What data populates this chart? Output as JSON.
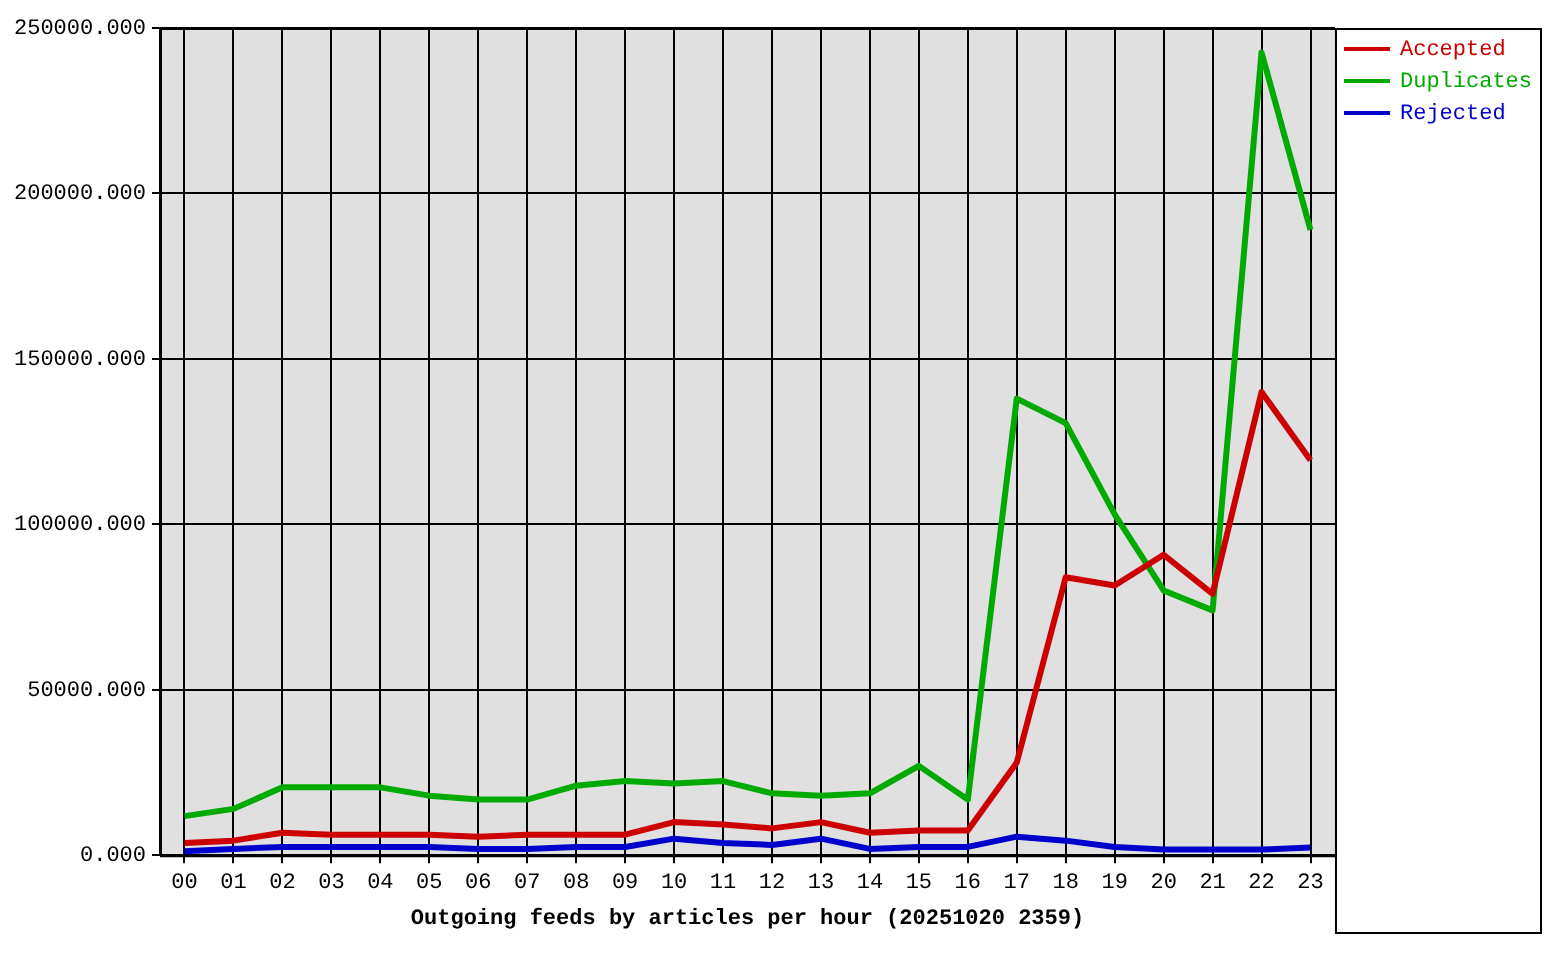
{
  "chart_data": {
    "type": "line",
    "xlabel": "Outgoing feeds by articles per hour (20251020 2359)",
    "categories": [
      "00",
      "01",
      "02",
      "03",
      "04",
      "05",
      "06",
      "07",
      "08",
      "09",
      "10",
      "11",
      "12",
      "13",
      "14",
      "15",
      "16",
      "17",
      "18",
      "19",
      "20",
      "21",
      "22",
      "23"
    ],
    "series": [
      {
        "name": "Accepted",
        "color": "#cc0000",
        "values": [
          3700,
          4400,
          6800,
          6200,
          6200,
          6200,
          5600,
          6200,
          6200,
          6200,
          10000,
          9300,
          8100,
          10000,
          6800,
          7500,
          7500,
          28000,
          84000,
          81500,
          90800,
          79000,
          140000,
          119400
        ]
      },
      {
        "name": "Duplicates",
        "color": "#00aa00",
        "values": [
          11800,
          14000,
          20500,
          20500,
          20500,
          18000,
          16800,
          16800,
          21000,
          22400,
          21700,
          22400,
          18700,
          18000,
          18700,
          27000,
          16800,
          138000,
          130600,
          103000,
          80000,
          74000,
          242600,
          189000
        ]
      },
      {
        "name": "Rejected",
        "color": "#0000cc",
        "values": [
          1200,
          1900,
          2500,
          2500,
          2500,
          2500,
          1900,
          1900,
          2500,
          2500,
          5000,
          3700,
          3100,
          5000,
          1900,
          2500,
          2500,
          5600,
          4400,
          2500,
          1700,
          1700,
          1700,
          2300
        ]
      }
    ],
    "ylim": [
      0,
      250000
    ],
    "yticks": [
      {
        "value": 0,
        "label": "0.000"
      },
      {
        "value": 50000,
        "label": "50000.000"
      },
      {
        "value": 100000,
        "label": "100000.000"
      },
      {
        "value": 150000,
        "label": "150000.000"
      },
      {
        "value": 200000,
        "label": "200000.000"
      },
      {
        "value": 250000,
        "label": "250000.000"
      }
    ],
    "grid": true,
    "legend": "top right",
    "line_style": "solid"
  }
}
